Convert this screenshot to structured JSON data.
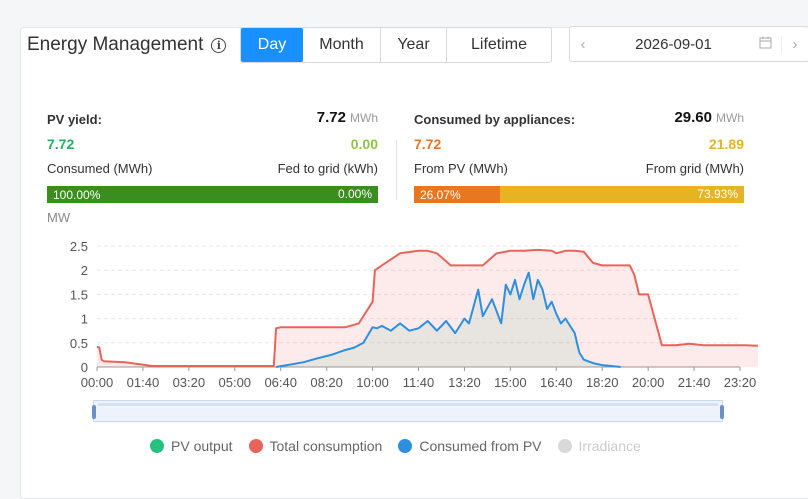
{
  "header": {
    "title": "Energy Management",
    "info_icon": "info-icon",
    "tabs": [
      {
        "label": "Day",
        "active": true
      },
      {
        "label": "Month",
        "active": false
      },
      {
        "label": "Year",
        "active": false
      },
      {
        "label": "Lifetime",
        "active": false
      }
    ],
    "date": "2026-09-01",
    "calendar_icon": "calendar-icon",
    "prev_icon": "chevron-left-icon",
    "next_icon": "chevron-right-icon"
  },
  "pv": {
    "label": "PV yield:",
    "value": "7.72",
    "unit": "MWh",
    "consumed_value": "7.72",
    "fed_value": "0.00",
    "consumed_label": "Consumed (MWh)",
    "fed_label": "Fed to grid (kWh)",
    "bar_left_text": "100.00%",
    "bar_right_text": "0.00%",
    "bar_left_fraction": 1.0,
    "colors": {
      "left": "#3a8e1f",
      "right": "#8dc63f"
    }
  },
  "consumption": {
    "label": "Consumed by appliances:",
    "value": "29.60",
    "unit": "MWh",
    "from_pv_value": "7.72",
    "from_grid_value": "21.89",
    "from_pv_label": "From PV (MWh)",
    "from_grid_label": "From grid (MWh)",
    "bar_left_text": "26.07%",
    "bar_right_text": "73.93%",
    "bar_left_fraction": 0.2607,
    "colors": {
      "left": "#e87722",
      "right": "#e6b422"
    }
  },
  "chart_data": {
    "type": "line",
    "ylabel": "MW",
    "ylim": [
      0,
      2.5
    ],
    "yticks": [
      "0",
      "0.5",
      "1",
      "1.5",
      "2",
      "2.5"
    ],
    "xticks": [
      "00:00",
      "01:40",
      "03:20",
      "05:00",
      "06:40",
      "08:20",
      "10:00",
      "11:40",
      "13:20",
      "15:00",
      "16:40",
      "18:20",
      "20:00",
      "21:40",
      "23:20"
    ],
    "grid": true,
    "legend_position": "bottom",
    "series": [
      {
        "name": "PV output",
        "color": "#27c080",
        "hidden": false,
        "x": [],
        "y": []
      },
      {
        "name": "Total consumption",
        "color": "#e8645a",
        "hidden": false,
        "x": [
          0,
          5,
          10,
          15,
          60,
          120,
          180,
          240,
          320,
          385,
          390,
          400,
          420,
          450,
          480,
          510,
          540,
          570,
          600,
          605,
          620,
          660,
          700,
          720,
          740,
          770,
          790,
          810,
          840,
          870,
          900,
          930,
          960,
          990,
          1000,
          1020,
          1040,
          1060,
          1080,
          1100,
          1120,
          1140,
          1160,
          1170,
          1180,
          1200,
          1230,
          1260,
          1290,
          1320,
          1350,
          1380,
          1410,
          1439
        ],
        "y": [
          0.42,
          0.4,
          0.15,
          0.12,
          0.1,
          0.02,
          0.02,
          0.02,
          0.02,
          0.02,
          0.8,
          0.82,
          0.82,
          0.82,
          0.82,
          0.82,
          0.82,
          0.9,
          1.35,
          2.0,
          2.1,
          2.35,
          2.4,
          2.4,
          2.35,
          2.1,
          2.1,
          2.1,
          2.1,
          2.35,
          2.4,
          2.4,
          2.42,
          2.4,
          2.35,
          2.4,
          2.4,
          2.38,
          2.15,
          2.1,
          2.1,
          2.1,
          2.1,
          1.9,
          1.5,
          1.5,
          0.45,
          0.45,
          0.48,
          0.45,
          0.45,
          0.45,
          0.45,
          0.44
        ]
      },
      {
        "name": "Consumed from PV",
        "color": "#2e8ee0",
        "hidden": false,
        "x": [
          390,
          420,
          450,
          480,
          510,
          540,
          560,
          580,
          600,
          610,
          620,
          640,
          660,
          680,
          700,
          720,
          740,
          760,
          780,
          800,
          810,
          830,
          840,
          860,
          880,
          890,
          900,
          910,
          920,
          930,
          940,
          950,
          960,
          970,
          980,
          990,
          1000,
          1010,
          1020,
          1030,
          1040,
          1050,
          1060,
          1080,
          1100,
          1120,
          1140
        ],
        "y": [
          0.0,
          0.05,
          0.1,
          0.18,
          0.25,
          0.35,
          0.4,
          0.5,
          0.82,
          0.8,
          0.85,
          0.75,
          0.9,
          0.75,
          0.8,
          0.95,
          0.75,
          0.95,
          0.7,
          1.0,
          0.9,
          1.6,
          1.05,
          1.4,
          0.9,
          1.7,
          1.5,
          1.8,
          1.4,
          1.7,
          1.95,
          1.4,
          1.8,
          1.6,
          1.2,
          1.35,
          1.1,
          0.9,
          1.0,
          0.85,
          0.7,
          0.3,
          0.15,
          0.08,
          0.04,
          0.02,
          0.0
        ]
      },
      {
        "name": "Irradiance",
        "color": "#cccccc",
        "hidden": true,
        "x": [],
        "y": []
      }
    ]
  }
}
